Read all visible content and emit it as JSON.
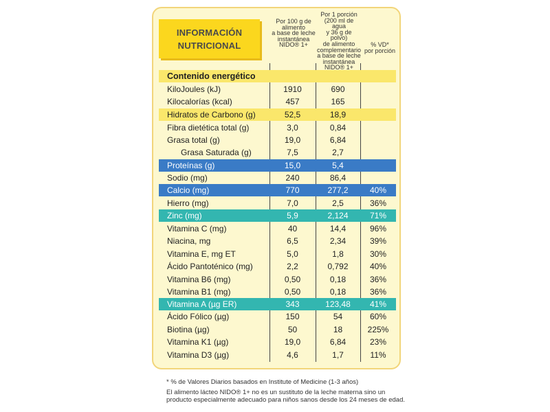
{
  "title": {
    "line1": "INFORMACIÓN",
    "line2": "NUTRICIONAL"
  },
  "columns": {
    "per100": [
      "Por 100 g de",
      "alimento",
      "a base de leche",
      "instantánea",
      "NIDO® 1+"
    ],
    "perPortion": [
      "Por 1 porción",
      "(200 ml de agua",
      "y 36 g de polvo)",
      "de alimento",
      "complementario",
      "a base de leche",
      "instantánea",
      "NIDO® 1+"
    ],
    "vd": [
      "% VD*",
      "por porción"
    ]
  },
  "section_header": "Contenido energético",
  "rows": [
    {
      "label": "KiloJoules (kJ)",
      "per100": "1910",
      "portion": "690",
      "vd": ""
    },
    {
      "label": "Kilocalorías (kcal)",
      "per100": "457",
      "portion": "165",
      "vd": ""
    },
    {
      "label": "Hidratos de Carbono (g)",
      "per100": "52,5",
      "portion": "18,9",
      "vd": ""
    },
    {
      "label": "Fibra dietética total (g)",
      "per100": "3,0",
      "portion": "0,84",
      "vd": ""
    },
    {
      "label": "Grasa total (g)",
      "per100": "19,0",
      "portion": "6,84",
      "vd": ""
    },
    {
      "label": "Grasa Saturada (g)",
      "per100": "7,5",
      "portion": "2,7",
      "vd": ""
    },
    {
      "label": "Proteínas (g)",
      "per100": "15,0",
      "portion": "5,4",
      "vd": ""
    },
    {
      "label": "Sodio (mg)",
      "per100": "240",
      "portion": "86,4",
      "vd": ""
    },
    {
      "label": "Calcio (mg)",
      "per100": "770",
      "portion": "277,2",
      "vd": "40%"
    },
    {
      "label": "Hierro (mg)",
      "per100": "7,0",
      "portion": "2,5",
      "vd": "36%"
    },
    {
      "label": "Zinc (mg)",
      "per100": "5,9",
      "portion": "2,124",
      "vd": "71%"
    },
    {
      "label": "Vitamina C (mg)",
      "per100": "40",
      "portion": "14,4",
      "vd": "96%"
    },
    {
      "label": "Niacina, mg",
      "per100": "6,5",
      "portion": "2,34",
      "vd": "39%"
    },
    {
      "label": "Vitamina E, mg ET",
      "per100": "5,0",
      "portion": "1,8",
      "vd": "30%"
    },
    {
      "label": "Ácido Pantoténico (mg)",
      "per100": "2,2",
      "portion": "0,792",
      "vd": "40%"
    },
    {
      "label": "Vitamina B6 (mg)",
      "per100": "0,50",
      "portion": "0,18",
      "vd": "36%"
    },
    {
      "label": "Vitamina B1 (mg)",
      "per100": "0,50",
      "portion": "0,18",
      "vd": "36%"
    },
    {
      "label": "Vitamina A (µg ER)",
      "per100": "343",
      "portion": "123,48",
      "vd": "41%"
    },
    {
      "label": "Ácido Fólico (µg)",
      "per100": "150",
      "portion": "54",
      "vd": "60%"
    },
    {
      "label": "Biotina (µg)",
      "per100": "50",
      "portion": "18",
      "vd": "225%"
    },
    {
      "label": "Vitamina K1 (µg)",
      "per100": "19,0",
      "portion": "6,84",
      "vd": "23%"
    },
    {
      "label": "Vitamina D3 (µg)",
      "per100": "4,6",
      "portion": "1,7",
      "vd": "11%"
    }
  ],
  "footnotes": {
    "vd_note": "* % de Valores Diarios basados en Institute of Medicine (1-3 años)",
    "disclaimer1": "El alimento lácteo NIDO® 1+ no es un sustituto de la leche materna sino un",
    "disclaimer2": "producto especialmente adecuado para niños sanos desde los 24 meses de edad."
  },
  "colors": {
    "panel": "#fdf8cf",
    "title": "#fbd71e",
    "yellow_band": "#fae76b",
    "blue_band": "#3a7bc6",
    "teal_band": "#33b6b0"
  }
}
